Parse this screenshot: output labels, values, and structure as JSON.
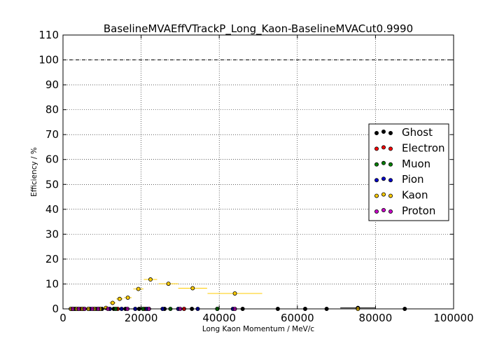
{
  "chart_data": {
    "type": "scatter",
    "title": "BaselineMVAEffVTrackP_Long_Kaon-BaselineMVACut0.9990",
    "xlabel": "Long Kaon Momentum / MeV/c",
    "ylabel": "Efficiency / %",
    "xlim": [
      0,
      100000
    ],
    "ylim": [
      0,
      110
    ],
    "x_ticks": [
      "0",
      "20000",
      "40000",
      "60000",
      "80000",
      "100000"
    ],
    "y_ticks": [
      "0",
      "10",
      "20",
      "30",
      "40",
      "50",
      "60",
      "70",
      "80",
      "90",
      "100",
      "110"
    ],
    "grid": true,
    "reference_line": 100,
    "legend_position": "right",
    "series": [
      {
        "name": "Ghost",
        "color": "#000000",
        "points": [
          {
            "x": 2000,
            "y": 0,
            "xerr": 250
          },
          {
            "x": 3000,
            "y": 0,
            "xerr": 250
          },
          {
            "x": 4000,
            "y": 0,
            "xerr": 250
          },
          {
            "x": 5000,
            "y": 0,
            "xerr": 250
          },
          {
            "x": 6500,
            "y": 0,
            "xerr": 500
          },
          {
            "x": 8000,
            "y": 0,
            "xerr": 500
          },
          {
            "x": 10000,
            "y": 0,
            "xerr": 700
          },
          {
            "x": 13000,
            "y": 0,
            "xerr": 800
          },
          {
            "x": 16000,
            "y": 0,
            "xerr": 800
          },
          {
            "x": 19500,
            "y": 0,
            "xerr": 1000
          },
          {
            "x": 22000,
            "y": 0,
            "xerr": 1000
          },
          {
            "x": 26000,
            "y": 0,
            "xerr": 1500
          },
          {
            "x": 33000,
            "y": 0,
            "xerr": 2000
          },
          {
            "x": 39500,
            "y": 0,
            "xerr": 2000
          },
          {
            "x": 46000,
            "y": 0,
            "xerr": 3000
          },
          {
            "x": 55000,
            "y": 0,
            "xerr": 3500
          },
          {
            "x": 62000,
            "y": 0,
            "xerr": 3500
          },
          {
            "x": 67500,
            "y": 0,
            "xerr": 4000
          },
          {
            "x": 75500,
            "y": 0.4,
            "xerr": 4500
          },
          {
            "x": 87500,
            "y": 0,
            "xerr": 6000
          }
        ]
      },
      {
        "name": "Electron",
        "color": "#ff0000",
        "points": [
          {
            "x": 2500,
            "y": 0,
            "xerr": 300
          },
          {
            "x": 4500,
            "y": 0,
            "xerr": 400
          },
          {
            "x": 6500,
            "y": 0,
            "xerr": 500
          },
          {
            "x": 9500,
            "y": 0,
            "xerr": 800
          },
          {
            "x": 14000,
            "y": 0,
            "xerr": 1200
          },
          {
            "x": 21000,
            "y": 0,
            "xerr": 1500
          },
          {
            "x": 31000,
            "y": 0,
            "xerr": 2000
          }
        ]
      },
      {
        "name": "Muon",
        "color": "#008000",
        "points": [
          {
            "x": 3000,
            "y": 0,
            "xerr": 300
          },
          {
            "x": 5500,
            "y": 0,
            "xerr": 500
          },
          {
            "x": 8500,
            "y": 0,
            "xerr": 700
          },
          {
            "x": 13500,
            "y": 0,
            "xerr": 1000
          },
          {
            "x": 20500,
            "y": 0,
            "xerr": 1500
          },
          {
            "x": 27500,
            "y": 0,
            "xerr": 2000
          },
          {
            "x": 39500,
            "y": 0,
            "xerr": 3000
          }
        ]
      },
      {
        "name": "Pion",
        "color": "#0000cc",
        "points": [
          {
            "x": 2200,
            "y": 0,
            "xerr": 200
          },
          {
            "x": 3500,
            "y": 0,
            "xerr": 300
          },
          {
            "x": 5000,
            "y": 0,
            "xerr": 400
          },
          {
            "x": 7000,
            "y": 0,
            "xerr": 500
          },
          {
            "x": 9000,
            "y": 0,
            "xerr": 600
          },
          {
            "x": 12000,
            "y": 0,
            "xerr": 800
          },
          {
            "x": 15000,
            "y": 0,
            "xerr": 1000
          },
          {
            "x": 18500,
            "y": 0,
            "xerr": 1200
          },
          {
            "x": 21500,
            "y": 0,
            "xerr": 1200
          },
          {
            "x": 25500,
            "y": 0,
            "xerr": 1500
          },
          {
            "x": 29500,
            "y": 0,
            "xerr": 2000
          },
          {
            "x": 34500,
            "y": 0,
            "xerr": 2500
          },
          {
            "x": 43500,
            "y": 0,
            "xerr": 3500
          }
        ]
      },
      {
        "name": "Kaon",
        "color": "#ffcc00",
        "points": [
          {
            "x": 2000,
            "y": 0,
            "xerr": 300
          },
          {
            "x": 3500,
            "y": 0,
            "xerr": 400
          },
          {
            "x": 5000,
            "y": 0,
            "xerr": 400
          },
          {
            "x": 6500,
            "y": 0,
            "xerr": 500
          },
          {
            "x": 8000,
            "y": 0,
            "xerr": 500
          },
          {
            "x": 9500,
            "y": 0,
            "xerr": 500
          },
          {
            "x": 11000,
            "y": 0.4,
            "xerr": 700
          },
          {
            "x": 12700,
            "y": 2.4,
            "xerr": 800
          },
          {
            "x": 14500,
            "y": 4.0,
            "xerr": 900
          },
          {
            "x": 16600,
            "y": 4.5,
            "xerr": 1000
          },
          {
            "x": 19300,
            "y": 8.0,
            "xerr": 1300
          },
          {
            "x": 22400,
            "y": 11.8,
            "xerr": 1700
          },
          {
            "x": 27000,
            "y": 10.1,
            "xerr": 2500
          },
          {
            "x": 33200,
            "y": 8.3,
            "xerr": 3700
          },
          {
            "x": 44000,
            "y": 6.2,
            "xerr": 7000
          },
          {
            "x": 75500,
            "y": 0,
            "xerr": 24500
          }
        ]
      },
      {
        "name": "Proton",
        "color": "#cc00cc",
        "points": [
          {
            "x": 2500,
            "y": 0,
            "xerr": 300
          },
          {
            "x": 4000,
            "y": 0,
            "xerr": 400
          },
          {
            "x": 5500,
            "y": 0,
            "xerr": 500
          },
          {
            "x": 7500,
            "y": 0,
            "xerr": 600
          },
          {
            "x": 9000,
            "y": 0,
            "xerr": 700
          },
          {
            "x": 11500,
            "y": 0,
            "xerr": 900
          },
          {
            "x": 16500,
            "y": 0,
            "xerr": 1200
          },
          {
            "x": 22000,
            "y": 0,
            "xerr": 1500
          },
          {
            "x": 30000,
            "y": 0,
            "xerr": 2000
          },
          {
            "x": 44000,
            "y": 0,
            "xerr": 3500
          }
        ]
      }
    ]
  }
}
